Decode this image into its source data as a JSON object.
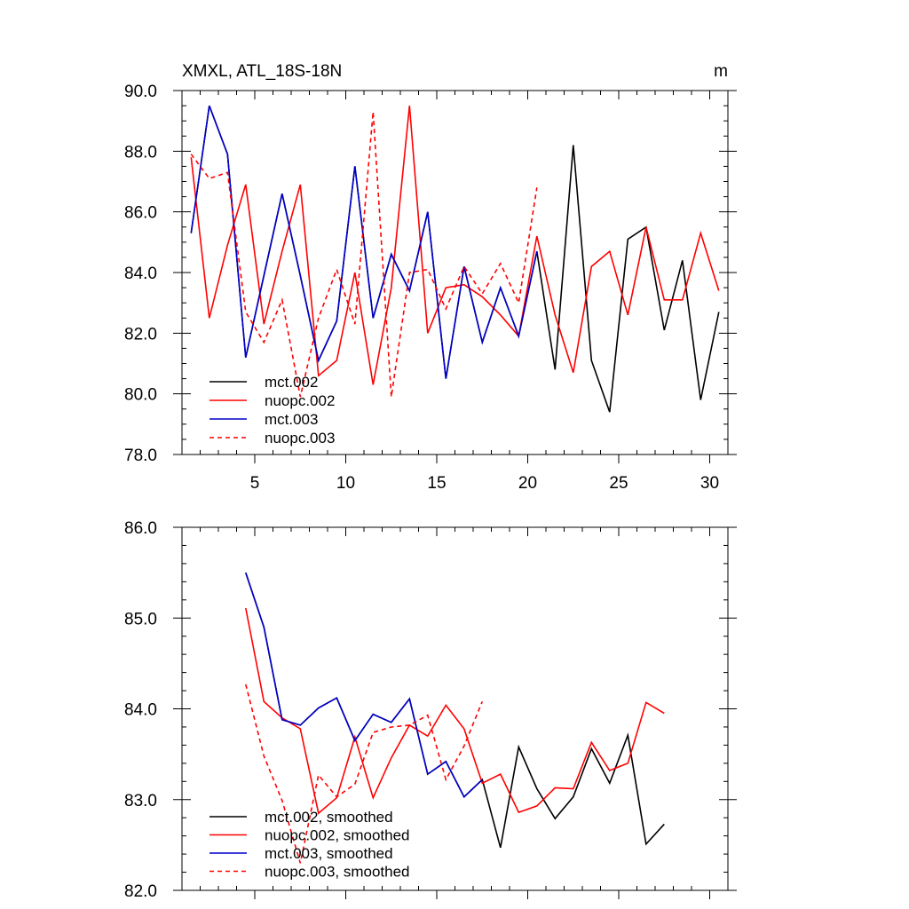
{
  "chart_data": [
    {
      "type": "line",
      "title": "XMXL, ATL_18S-18N",
      "units_label": "m",
      "xlim": [
        1,
        31
      ],
      "ylim": [
        78,
        90
      ],
      "x_ticks": [
        5,
        10,
        15,
        20,
        25,
        30
      ],
      "y_ticks": [
        78,
        80,
        82,
        84,
        86,
        88,
        90
      ],
      "y_tick_labels": [
        "78.0",
        "80.0",
        "82.0",
        "84.0",
        "86.0",
        "88.0",
        "90.0"
      ],
      "x_minor_step": 1,
      "y_minor_step": 0.5,
      "legend_position": "bottom-left",
      "series": [
        {
          "name": "mct.002",
          "color": "#000000",
          "dash": "solid",
          "x": [
            1.5,
            2.5,
            3.5,
            4.5,
            5.5,
            6.5,
            7.5,
            8.5,
            9.5,
            10.5,
            11.5,
            12.5,
            13.5,
            14.5,
            15.5,
            16.5,
            17.5,
            18.5,
            19.5,
            20.5,
            21.5,
            22.5,
            23.5,
            24.5,
            25.5,
            26.5,
            27.5,
            28.5,
            29.5,
            30.5
          ],
          "y": [
            85.3,
            89.5,
            87.9,
            81.2,
            83.9,
            86.6,
            83.9,
            81.1,
            82.4,
            87.5,
            82.5,
            84.6,
            83.4,
            86.0,
            80.5,
            84.2,
            81.7,
            83.5,
            81.9,
            84.7,
            80.8,
            88.2,
            81.1,
            79.4,
            85.1,
            85.5,
            82.1,
            84.4,
            79.8,
            82.7
          ]
        },
        {
          "name": "nuopc.002",
          "color": "#ff0000",
          "dash": "solid",
          "x": [
            1.5,
            2.5,
            3.5,
            4.5,
            5.5,
            6.5,
            7.5,
            8.5,
            9.5,
            10.5,
            11.5,
            12.5,
            13.5,
            14.5,
            15.5,
            16.5,
            17.5,
            18.5,
            19.5,
            20.5,
            21.5,
            22.5,
            23.5,
            24.5,
            25.5,
            26.5,
            27.5,
            28.5,
            29.5,
            30.5
          ],
          "y": [
            87.8,
            82.5,
            84.9,
            86.9,
            82.3,
            84.7,
            86.9,
            80.6,
            81.1,
            84.0,
            80.3,
            83.5,
            89.5,
            82.0,
            83.5,
            83.6,
            83.2,
            82.6,
            81.9,
            85.2,
            82.6,
            80.7,
            84.2,
            84.7,
            82.6,
            85.5,
            83.1,
            83.1,
            85.3,
            83.4
          ]
        },
        {
          "name": "mct.003",
          "color": "#0000cc",
          "dash": "solid",
          "x": [
            1.5,
            2.5,
            3.5,
            4.5,
            5.5,
            6.5,
            7.5,
            8.5,
            9.5,
            10.5,
            11.5,
            12.5,
            13.5,
            14.5,
            15.5,
            16.5,
            17.5,
            18.5,
            19.5,
            20.5
          ],
          "y": [
            85.3,
            89.5,
            87.9,
            81.2,
            83.9,
            86.6,
            83.9,
            81.1,
            82.4,
            87.5,
            82.5,
            84.6,
            83.4,
            86.0,
            80.5,
            84.2,
            81.7,
            83.5,
            81.9,
            84.7
          ]
        },
        {
          "name": "nuopc.003",
          "color": "#ff0000",
          "dash": "dashed",
          "x": [
            1.5,
            2.5,
            3.5,
            4.5,
            5.5,
            6.5,
            7.5,
            8.5,
            9.5,
            10.5,
            11.5,
            12.5,
            13.5,
            14.5,
            15.5,
            16.5,
            17.5,
            18.5,
            19.5,
            20.5
          ],
          "y": [
            87.9,
            87.1,
            87.3,
            82.7,
            81.7,
            83.1,
            79.9,
            82.5,
            84.1,
            82.3,
            89.3,
            79.9,
            84.0,
            84.1,
            82.8,
            84.2,
            83.3,
            84.3,
            83.0,
            86.8
          ]
        }
      ]
    },
    {
      "type": "line",
      "title": "",
      "units_label": "",
      "xlim": [
        1,
        31
      ],
      "ylim": [
        82,
        86
      ],
      "x_ticks": [
        5,
        10,
        15,
        20,
        25,
        30
      ],
      "y_ticks": [
        82,
        83,
        84,
        85,
        86
      ],
      "y_tick_labels": [
        "82.0",
        "83.0",
        "84.0",
        "85.0",
        "86.0"
      ],
      "x_minor_step": 1,
      "y_minor_step": 0.2,
      "legend_position": "bottom-left",
      "series": [
        {
          "name": "mct.002, smoothed",
          "color": "#000000",
          "dash": "solid",
          "x": [
            4.5,
            5.5,
            6.5,
            7.5,
            8.5,
            9.5,
            10.5,
            11.5,
            12.5,
            13.5,
            14.5,
            15.5,
            16.5,
            17.5,
            18.5,
            19.5,
            20.5,
            21.5,
            22.5,
            23.5,
            24.5,
            25.5,
            26.5,
            27.5
          ],
          "y": [
            85.5,
            84.9,
            83.88,
            83.82,
            84.01,
            84.12,
            83.65,
            83.94,
            83.85,
            84.11,
            83.28,
            83.42,
            83.03,
            83.22,
            82.47,
            83.58,
            83.12,
            82.79,
            83.03,
            83.56,
            83.18,
            83.71,
            82.51,
            82.73
          ]
        },
        {
          "name": "nuopc.002, smoothed",
          "color": "#ff0000",
          "dash": "solid",
          "x": [
            4.5,
            5.5,
            6.5,
            7.5,
            8.5,
            9.5,
            10.5,
            11.5,
            12.5,
            13.5,
            14.5,
            15.5,
            16.5,
            17.5,
            18.5,
            19.5,
            20.5,
            21.5,
            22.5,
            23.5,
            24.5,
            25.5,
            26.5,
            27.5
          ],
          "y": [
            85.11,
            84.08,
            83.9,
            83.78,
            82.85,
            83.02,
            83.69,
            83.02,
            83.46,
            83.82,
            83.7,
            84.04,
            83.78,
            83.18,
            83.28,
            82.86,
            82.93,
            83.13,
            83.12,
            83.63,
            83.32,
            83.4,
            84.07,
            83.95
          ]
        },
        {
          "name": "mct.003, smoothed",
          "color": "#0000cc",
          "dash": "solid",
          "x": [
            4.5,
            5.5,
            6.5,
            7.5,
            8.5,
            9.5,
            10.5,
            11.5,
            12.5,
            13.5,
            14.5,
            15.5,
            16.5,
            17.5
          ],
          "y": [
            85.5,
            84.9,
            83.88,
            83.82,
            84.01,
            84.12,
            83.65,
            83.94,
            83.85,
            84.11,
            83.28,
            83.42,
            83.03,
            83.22
          ]
        },
        {
          "name": "nuopc.003, smoothed",
          "color": "#ff0000",
          "dash": "dashed",
          "x": [
            4.5,
            5.5,
            6.5,
            7.5,
            8.5,
            9.5,
            10.5,
            11.5,
            12.5,
            13.5,
            14.5,
            15.5,
            16.5,
            17.5
          ],
          "y": [
            84.27,
            83.48,
            82.99,
            82.3,
            83.27,
            83.03,
            83.17,
            83.74,
            83.8,
            83.82,
            83.93,
            83.22,
            83.59,
            84.08
          ]
        }
      ]
    }
  ]
}
